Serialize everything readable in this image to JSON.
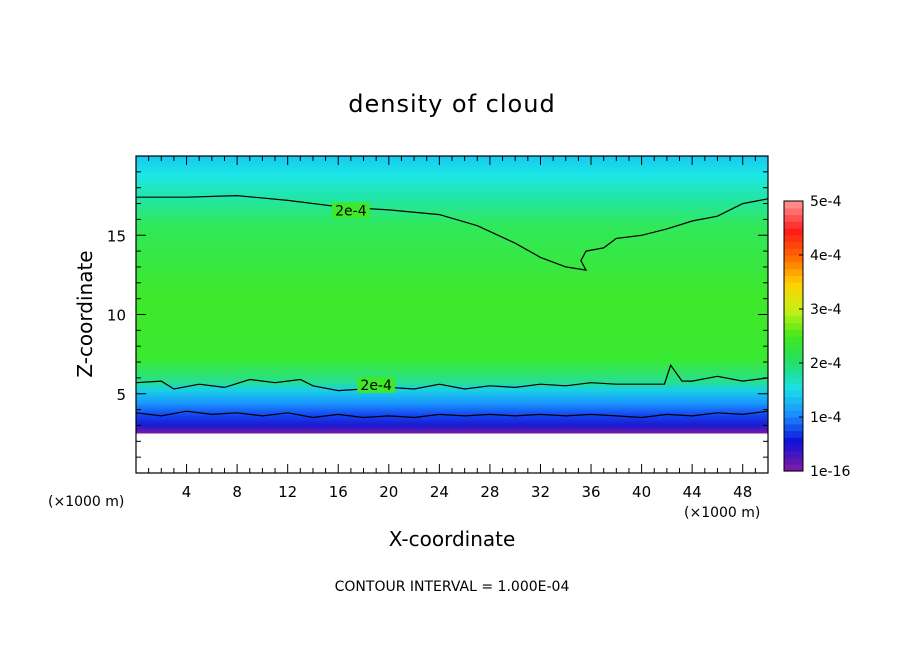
{
  "chart_data": {
    "type": "heatmap",
    "title": "density of cloud",
    "xlabel": "X-coordinate",
    "ylabel": "Z-coordinate",
    "x_units": "(×1000 m)",
    "x_units_right": "(×1000 m)",
    "xlim": [
      0,
      50
    ],
    "ylim": [
      0,
      20
    ],
    "xticks": [
      4,
      8,
      12,
      16,
      20,
      24,
      28,
      32,
      36,
      40,
      44,
      48
    ],
    "yticks": [
      5,
      10,
      15
    ],
    "colorbar": {
      "range": [
        0,
        0.0005
      ],
      "ticks": [
        {
          "value": 0.0005,
          "label": "5e-4"
        },
        {
          "value": 0.0004,
          "label": "4e-4"
        },
        {
          "value": 0.0003,
          "label": "3e-4"
        },
        {
          "value": 0.0002,
          "label": "2e-4"
        },
        {
          "value": 0.0001,
          "label": "1e-4"
        },
        {
          "value": 0.0,
          "label": "1e-16"
        }
      ],
      "colors": [
        "#7a1aa8",
        "#1010d8",
        "#1a8cff",
        "#19e0e8",
        "#22e06a",
        "#42e81a",
        "#c8f018",
        "#ffd000",
        "#ff6a00",
        "#ff1a1a",
        "#ff8a8a"
      ]
    },
    "contours": [
      {
        "label": "2e-4",
        "level": 0.0002,
        "label_at": [
          17,
          16.5
        ],
        "points": [
          [
            0,
            17.4
          ],
          [
            4,
            17.4
          ],
          [
            8,
            17.5
          ],
          [
            12,
            17.2
          ],
          [
            16,
            16.8
          ],
          [
            20,
            16.6
          ],
          [
            24,
            16.3
          ],
          [
            27,
            15.6
          ],
          [
            30,
            14.5
          ],
          [
            32,
            13.6
          ],
          [
            34,
            13.0
          ],
          [
            35.6,
            12.8
          ],
          [
            35.2,
            13.4
          ],
          [
            35.6,
            14.0
          ],
          [
            37,
            14.2
          ],
          [
            38,
            14.8
          ],
          [
            40,
            15.0
          ],
          [
            42,
            15.4
          ],
          [
            44,
            15.9
          ],
          [
            46,
            16.2
          ],
          [
            48,
            17.0
          ],
          [
            50,
            17.3
          ]
        ]
      },
      {
        "label": "2e-4",
        "level": 0.0002,
        "label_at": [
          19,
          5.5
        ],
        "points": [
          [
            0,
            5.7
          ],
          [
            2,
            5.8
          ],
          [
            3,
            5.3
          ],
          [
            5,
            5.6
          ],
          [
            7,
            5.4
          ],
          [
            9,
            5.9
          ],
          [
            11,
            5.7
          ],
          [
            13,
            5.9
          ],
          [
            14,
            5.5
          ],
          [
            16,
            5.2
          ],
          [
            18,
            5.3
          ],
          [
            20,
            5.4
          ],
          [
            22,
            5.3
          ],
          [
            24,
            5.6
          ],
          [
            26,
            5.3
          ],
          [
            28,
            5.5
          ],
          [
            30,
            5.4
          ],
          [
            32,
            5.6
          ],
          [
            34,
            5.5
          ],
          [
            36,
            5.7
          ],
          [
            38,
            5.6
          ],
          [
            40,
            5.6
          ],
          [
            41.8,
            5.6
          ],
          [
            42.3,
            6.8
          ],
          [
            43.2,
            5.8
          ],
          [
            44,
            5.8
          ],
          [
            46,
            6.1
          ],
          [
            48,
            5.8
          ],
          [
            50,
            6.0
          ]
        ]
      },
      {
        "label": "",
        "level": 0.0001,
        "label_at": null,
        "points": [
          [
            0,
            3.8
          ],
          [
            2,
            3.6
          ],
          [
            4,
            3.9
          ],
          [
            6,
            3.7
          ],
          [
            8,
            3.8
          ],
          [
            10,
            3.6
          ],
          [
            12,
            3.8
          ],
          [
            14,
            3.5
          ],
          [
            16,
            3.7
          ],
          [
            18,
            3.5
          ],
          [
            20,
            3.6
          ],
          [
            22,
            3.5
          ],
          [
            24,
            3.7
          ],
          [
            26,
            3.6
          ],
          [
            28,
            3.7
          ],
          [
            30,
            3.6
          ],
          [
            32,
            3.7
          ],
          [
            34,
            3.6
          ],
          [
            36,
            3.7
          ],
          [
            38,
            3.6
          ],
          [
            40,
            3.5
          ],
          [
            42,
            3.7
          ],
          [
            44,
            3.6
          ],
          [
            46,
            3.8
          ],
          [
            48,
            3.7
          ],
          [
            50,
            3.9
          ]
        ]
      }
    ],
    "field_features": {
      "cloud_base_km": 2.5,
      "description_bands": [
        {
          "z": [
            2.5,
            3.2
          ],
          "value": 2e-05
        },
        {
          "z": [
            3.2,
            4.2
          ],
          "value": 8e-05
        },
        {
          "z": [
            4.2,
            5.5
          ],
          "value": 0.00015
        },
        {
          "z": [
            5.5,
            17.4
          ],
          "value": 0.00025
        },
        {
          "z": [
            17.4,
            20
          ],
          "value": 0.00018
        }
      ]
    },
    "footer": "CONTOUR INTERVAL = 1.000E-04"
  }
}
